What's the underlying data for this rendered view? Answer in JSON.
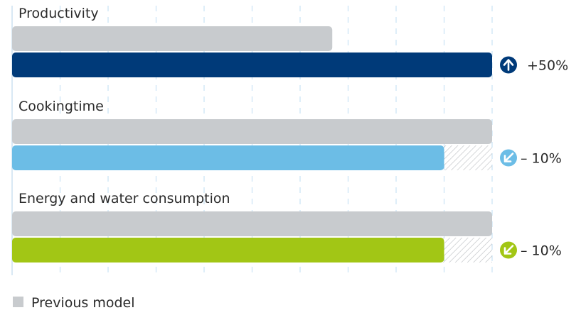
{
  "chart_data": {
    "type": "bar",
    "orientation": "horizontal",
    "categories": [
      "Productivity",
      "Cookingtime",
      "Energy and water consumption"
    ],
    "series": [
      {
        "name": "Previous model",
        "values": [
          66.7,
          100,
          100
        ],
        "color": "#c8cbce"
      },
      {
        "values": [
          100,
          90,
          90
        ],
        "colors": [
          "#003a79",
          "#6cbde6",
          "#a2c615"
        ]
      }
    ],
    "changes": [
      {
        "text": "+50%",
        "direction": "up",
        "color": "#003a79"
      },
      {
        "text": "– 10%",
        "direction": "down",
        "color": "#6cbde6"
      },
      {
        "text": "– 10%",
        "direction": "down",
        "color": "#a2c615"
      }
    ],
    "xlim": [
      0,
      100
    ],
    "grid": true,
    "legend_position": "bottom-left"
  }
}
